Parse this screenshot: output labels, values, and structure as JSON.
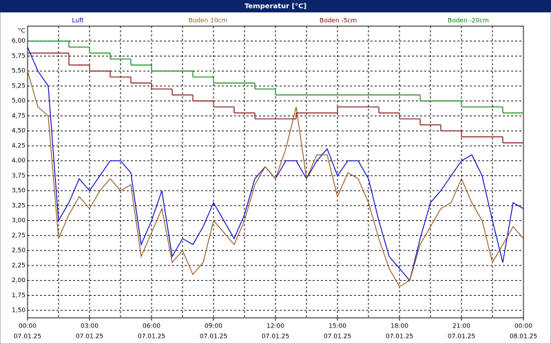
{
  "chart_data": {
    "type": "line",
    "title": "Temperatur [°C]",
    "y_unit": "°C",
    "xlim": [
      0,
      24
    ],
    "ylim": [
      1.375,
      6.25
    ],
    "xticks": [
      {
        "value": 0,
        "label": "00:00"
      },
      {
        "value": 3,
        "label": "03:00"
      },
      {
        "value": 6,
        "label": "06:00"
      },
      {
        "value": 9,
        "label": "09:00"
      },
      {
        "value": 12,
        "label": "12:00"
      },
      {
        "value": 15,
        "label": "15:00"
      },
      {
        "value": 18,
        "label": "18:00"
      },
      {
        "value": 21,
        "label": "21:00"
      },
      {
        "value": 24,
        "label": "00:00"
      }
    ],
    "xtick_dates": [
      "07.01.25",
      "07.01.25",
      "07.01.25",
      "07.01.25",
      "07.01.25",
      "07.01.25",
      "07.01.25",
      "07.01.25",
      "08.01.25"
    ],
    "xminor": [
      1.5,
      4.5,
      7.5,
      10.5,
      13.5,
      16.5,
      19.5,
      22.5
    ],
    "yticks": [
      {
        "value": 1.5,
        "label": "1,50"
      },
      {
        "value": 1.75,
        "label": "1,75"
      },
      {
        "value": 2,
        "label": "2,00"
      },
      {
        "value": 2.25,
        "label": "2,25"
      },
      {
        "value": 2.5,
        "label": "2,50"
      },
      {
        "value": 2.75,
        "label": "2,75"
      },
      {
        "value": 3,
        "label": "3,00"
      },
      {
        "value": 3.25,
        "label": "3,25"
      },
      {
        "value": 3.5,
        "label": "3,50"
      },
      {
        "value": 3.75,
        "label": "3,75"
      },
      {
        "value": 4,
        "label": "4,00"
      },
      {
        "value": 4.25,
        "label": "4,25"
      },
      {
        "value": 4.5,
        "label": "4,50"
      },
      {
        "value": 4.75,
        "label": "4,75"
      },
      {
        "value": 5,
        "label": "5,00"
      },
      {
        "value": 5.25,
        "label": "5,25"
      },
      {
        "value": 5.5,
        "label": "5,50"
      },
      {
        "value": 5.75,
        "label": "5,75"
      },
      {
        "value": 6,
        "label": "6,00"
      }
    ],
    "grid": true,
    "series": [
      {
        "name": "Luft",
        "color": "#0000c8",
        "x": [
          0,
          0.5,
          1,
          1.5,
          2,
          2.5,
          3,
          3.5,
          4,
          4.5,
          5,
          5.5,
          6,
          6.5,
          7,
          7.5,
          8,
          8.5,
          9,
          9.5,
          10,
          10.5,
          11,
          11.5,
          12,
          12.5,
          13,
          13.5,
          14,
          14.5,
          15,
          15.5,
          16,
          16.5,
          17,
          17.5,
          18,
          18.5,
          19,
          19.5,
          20,
          20.5,
          21,
          21.5,
          22,
          22.5,
          23,
          23.5,
          24
        ],
        "values": [
          5.9,
          5.5,
          5.25,
          3.0,
          3.3,
          3.7,
          3.5,
          3.75,
          4.0,
          4.0,
          3.8,
          2.6,
          3.0,
          3.5,
          2.4,
          2.7,
          2.6,
          2.9,
          3.3,
          3.0,
          2.7,
          3.1,
          3.7,
          3.9,
          3.7,
          4.0,
          4.0,
          3.7,
          4.0,
          4.2,
          3.75,
          4.0,
          4.0,
          3.7,
          3.0,
          2.4,
          2.2,
          2.0,
          2.7,
          3.3,
          3.5,
          3.75,
          4.0,
          4.1,
          3.75,
          3.0,
          2.3,
          3.3,
          3.2
        ]
      },
      {
        "name": "Boden 10cm",
        "color": "#9a5a1e",
        "x": [
          0,
          0.5,
          1,
          1.5,
          2,
          2.5,
          3,
          3.5,
          4,
          4.5,
          5,
          5.5,
          6,
          6.5,
          7,
          7.5,
          8,
          8.5,
          9,
          9.5,
          10,
          10.5,
          11,
          11.5,
          12,
          12.5,
          13,
          13.5,
          14,
          14.5,
          15,
          15.5,
          16,
          16.5,
          17,
          17.5,
          18,
          18.5,
          19,
          19.5,
          20,
          20.5,
          21,
          21.5,
          22,
          22.5,
          23,
          23.5,
          24
        ],
        "values": [
          5.5,
          4.9,
          4.75,
          2.7,
          3.1,
          3.4,
          3.2,
          3.5,
          3.7,
          3.5,
          3.6,
          2.4,
          2.8,
          3.2,
          2.3,
          2.5,
          2.1,
          2.3,
          3.0,
          2.8,
          2.6,
          3.0,
          3.6,
          3.9,
          3.7,
          4.2,
          4.9,
          3.7,
          4.1,
          4.1,
          3.4,
          3.8,
          3.7,
          3.3,
          2.7,
          2.2,
          1.9,
          2.0,
          2.6,
          2.9,
          3.2,
          3.3,
          3.7,
          3.3,
          3.0,
          2.3,
          2.6,
          2.9,
          2.7
        ]
      },
      {
        "name": "Boden -5cm",
        "color": "#800000",
        "drawstyle": "steps",
        "x": [
          0,
          1,
          2,
          3,
          4,
          5,
          6,
          7,
          8,
          9,
          10,
          11,
          12,
          13,
          14,
          15,
          16,
          17,
          18,
          19,
          20,
          21,
          22,
          23,
          24
        ],
        "values": [
          5.8,
          5.8,
          5.6,
          5.5,
          5.4,
          5.3,
          5.2,
          5.1,
          5.0,
          4.9,
          4.8,
          4.7,
          4.7,
          4.8,
          4.8,
          4.9,
          4.9,
          4.8,
          4.7,
          4.6,
          4.5,
          4.4,
          4.4,
          4.3,
          4.3
        ]
      },
      {
        "name": "Boden -20cm",
        "color": "#008000",
        "drawstyle": "steps",
        "x": [
          0,
          1,
          2,
          3,
          4,
          5,
          6,
          7,
          8,
          9,
          10,
          11,
          12,
          13,
          14,
          15,
          16,
          17,
          18,
          19,
          20,
          21,
          22,
          23,
          24
        ],
        "values": [
          6.0,
          6.0,
          5.9,
          5.8,
          5.7,
          5.6,
          5.5,
          5.5,
          5.4,
          5.3,
          5.3,
          5.2,
          5.1,
          5.1,
          5.1,
          5.1,
          5.1,
          5.1,
          5.1,
          5.0,
          5.0,
          4.9,
          4.9,
          4.8,
          4.8
        ]
      }
    ]
  }
}
